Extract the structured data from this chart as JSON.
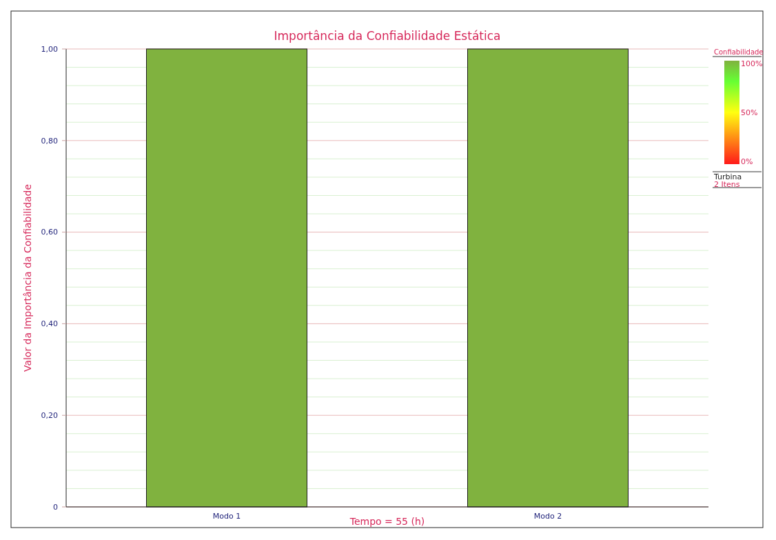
{
  "chart_data": {
    "type": "bar",
    "title": "Importância da Confiabilidade Estática",
    "xlabel": "Tempo = 55 (h)",
    "ylabel": "Valor da Importância da Confiabilidade",
    "categories": [
      "Modo 1",
      "Modo 2"
    ],
    "series": [
      {
        "color": "#80b23f",
        "values": [
          1.0,
          1.0
        ]
      }
    ],
    "ylim": [
      0,
      1
    ],
    "yticks": [
      {
        "value": 0,
        "label": "0"
      },
      {
        "value": 0.2,
        "label": "0,20"
      },
      {
        "value": 0.4,
        "label": "0,40"
      },
      {
        "value": 0.6,
        "label": "0,60"
      },
      {
        "value": 0.8,
        "label": "0,80"
      },
      {
        "value": 1,
        "label": "1,00"
      }
    ],
    "grid": "y",
    "clabel": "Confiabilidade",
    "clim": [
      0,
      100
    ],
    "cticks": [
      {
        "value": 0,
        "label": "0%"
      },
      {
        "value": 50,
        "label": "50%"
      },
      {
        "value": 100,
        "label": "100%"
      }
    ],
    "annotations": [
      "Turbina",
      "2 Itens"
    ]
  }
}
